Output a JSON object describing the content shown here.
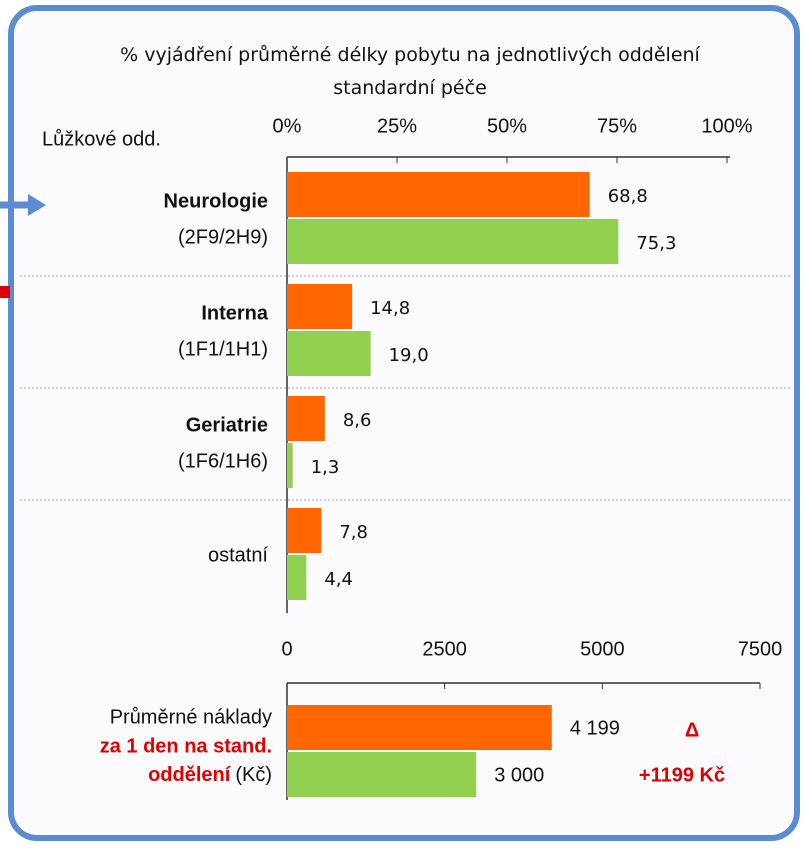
{
  "chart_data": [
    {
      "type": "barh",
      "title": "% vyjádření průměrné délky pobytu na jednotlivých oddělení standardní péče",
      "ylabel": "Lůžkové odd.",
      "categories": [
        [
          "Neurologie",
          "(2F9/2H9)"
        ],
        [
          "Interna",
          "(1F1/1H1)"
        ],
        [
          "Geriatrie",
          "(1F6/1H6)"
        ],
        [
          "ostatní"
        ]
      ],
      "series": [
        {
          "color": "#ff6600",
          "values": [
            68.8,
            14.8,
            8.6,
            7.8
          ],
          "value_labels": [
            "68,8",
            "14,8",
            "8,6",
            "7,8"
          ]
        },
        {
          "color": "#92d050",
          "values": [
            75.3,
            19.0,
            1.3,
            4.4
          ],
          "value_labels": [
            "75,3",
            "19,0",
            "1,3",
            "4,4"
          ]
        }
      ],
      "xlim": [
        0,
        100
      ],
      "xticks": [
        {
          "value": 0,
          "label": "0%"
        },
        {
          "value": 25,
          "label": "25%"
        },
        {
          "value": 50,
          "label": "50%"
        },
        {
          "value": 75,
          "label": "75%"
        },
        {
          "value": 100,
          "label": "100%"
        }
      ]
    },
    {
      "type": "barh",
      "categories": [
        [
          "Průměrné náklady",
          "za 1 den na stand.",
          "oddělení",
          "(Kč)"
        ]
      ],
      "series": [
        {
          "color": "#ff6600",
          "values": [
            4199
          ],
          "value_labels": [
            "4 199"
          ]
        },
        {
          "color": "#92d050",
          "values": [
            3000
          ],
          "value_labels": [
            "3 000"
          ]
        }
      ],
      "xlim": [
        0,
        7500
      ],
      "xticks": [
        0,
        2500,
        5000,
        7500
      ],
      "annotations": [
        "Δ",
        "+1199 Kč"
      ]
    }
  ]
}
